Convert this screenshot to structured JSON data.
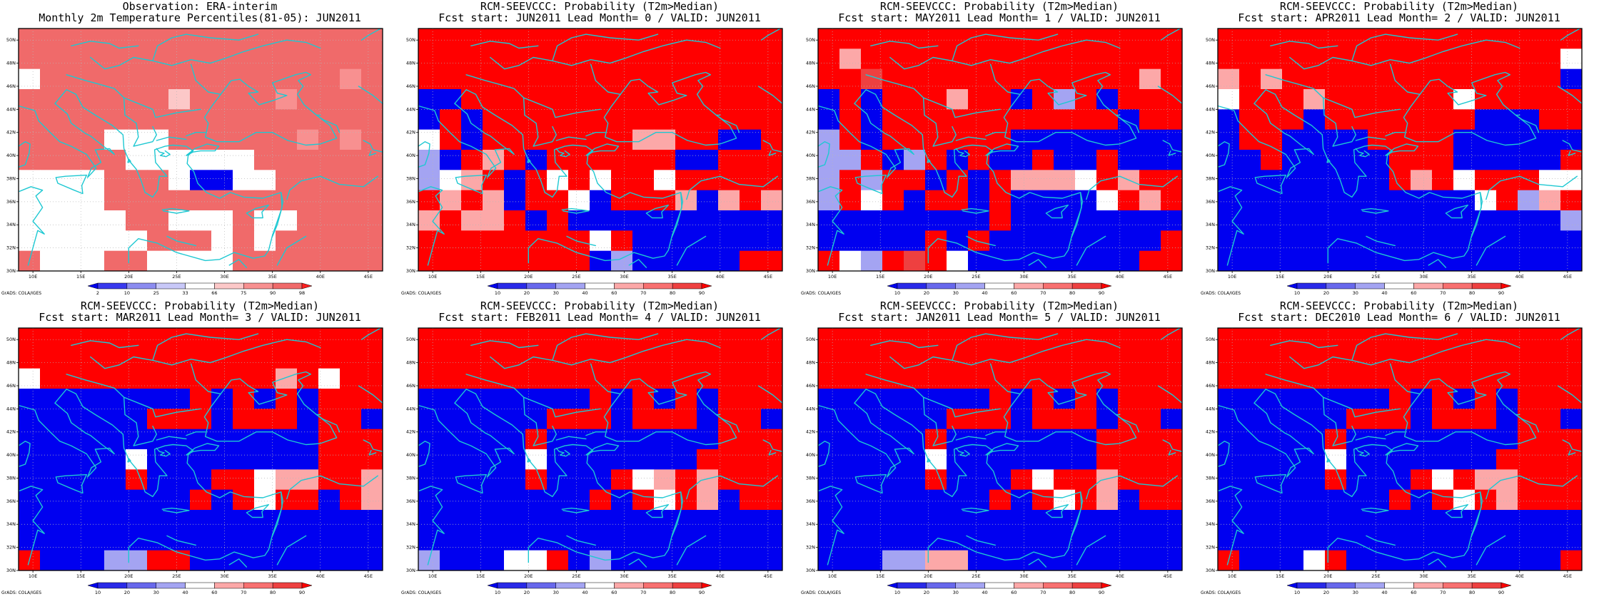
{
  "colors": {
    "coast": "#1ec8d2",
    "grid": "#b8b8b8",
    "prob": {
      "10": "#0000f0",
      "20": "#2a2ae8",
      "30": "#6868ec",
      "40": "#a4a4f2",
      "60": "#ffffff",
      "70": "#fca8a8",
      "80": "#f87070",
      "90": "#ee4040",
      "100": "#ff0000"
    },
    "pct": {
      "2": "#0000f0",
      "10": "#3a3aee",
      "25": "#8c8cf0",
      "33": "#c8c8f8",
      "66": "#ffffff",
      "75": "#fcc8c8",
      "90": "#f89090",
      "98": "#f06a6a",
      "100": "#ff2020"
    }
  },
  "panels": [
    {
      "id": "obs",
      "title_line1": "Observation: ERA-interim",
      "title_line2": "Monthly 2m Temperature Percentiles(81-05): JUN2011",
      "credit": "GrADS: COLA/IGES",
      "legend_labels": [
        "2",
        "10",
        "25",
        "33",
        "66",
        "75",
        "90",
        "98"
      ],
      "scale": "pct",
      "grid": [
        "99999999999999999",
        "99999999999999999",
        "69999999999999989",
        "99999997999989999",
        "99999999999999999",
        "99996669999998989",
        "99999665556999999",
        "66669996006699999",
        "66669999999999999",
        "66666996669669999",
        "66666699969699999",
        "96669966669999999"
      ]
    },
    {
      "id": "lead0",
      "title_line1": "RCM-SEEVCCC: Probability (T2m>Median)",
      "title_line2": "Fcst start: JUN2011  Lead Month= 0 / VALID: JUN2011",
      "credit": "GrADS: COLA/IGES",
      "legend_labels": [
        "10",
        "20",
        "30",
        "40",
        "60",
        "70",
        "80",
        "90"
      ],
      "scale": "prob",
      "grid": [
        "XXXXXXXXXXXXXXXXX",
        "XXXXXXXXXXXXXXXXX",
        "XXXXXXXXXXXXXXXXX",
        "11XXXXXXXXXXXXXXX",
        "1X1XXXXXXXXXXXXXX",
        "6X1XXXXXXX77XX11X",
        "41X7X1XXXXXX11XXX",
        "467X1X6X6XX6XXXXX",
        "X7X71XX61XXX717X7",
        "7X77X1X1111111111",
        "XXXXXXXX6X1111111",
        "XXXXXXXX1411111XX"
      ]
    },
    {
      "id": "lead1",
      "title_line1": "RCM-SEEVCCC: Probability (T2m>Median)",
      "title_line2": "Fcst start: MAY2011  Lead Month= 1 / VALID: JUN2011",
      "credit": "GrADS: COLA/IGES",
      "legend_labels": [
        "10",
        "20",
        "30",
        "40",
        "60",
        "70",
        "80",
        "90"
      ],
      "scale": "prob",
      "grid": [
        "XXXXXXXXXXXXXXXXX",
        "X7XXXXXXXXXXXXXXX",
        "XX9XXXXXXXXXXXX7X",
        "1X1XXX7XX1X4X1XXX",
        "1X1XXXXXXXXXXX1XX",
        "4X1XXXXXX11111111",
        "44X14X1X11X11X111",
        "4X4XX1X1X7776X7XX",
        "4X6X1XX1X11116X7X",
        "11111111X11111111",
        "11111X1X11111111X",
        "X64X9X611111111XX"
      ]
    },
    {
      "id": "lead2",
      "title_line1": "RCM-SEEVCCC: Probability (T2m>Median)",
      "title_line2": "Fcst start: APR2011  Lead Month= 2 / VALID: JUN2011",
      "credit": "GrADS: COLA/IGES",
      "legend_labels": [
        "10",
        "20",
        "30",
        "40",
        "60",
        "70",
        "80",
        "90"
      ],
      "scale": "prob",
      "grid": [
        "XXXXXXXXXXXXXXXXX",
        "XXXXXXXXXXXXXXXX6",
        "7X7XXXXXXXXXXXXX1",
        "6XXX7XXXXXX6XXXXX",
        "1XXX1XXXXXXX111XX",
        "1XX1111XXXX111111",
        "11X11111XXX11111X",
        "11111111X7X6XXX66",
        "1111111111116X47X",
        "11111111111111114",
        "11111111111111111",
        "11111111111111111"
      ]
    },
    {
      "id": "lead3",
      "title_line1": "RCM-SEEVCCC: Probability (T2m>Median)",
      "title_line2": "Fcst start: MAR2011  Lead Month= 3 / VALID: JUN2011",
      "credit": "GrADS: COLA/IGES",
      "legend_labels": [
        "10",
        "20",
        "30",
        "40",
        "60",
        "70",
        "80",
        "90"
      ],
      "scale": "prob",
      "grid": [
        "XXXXXXXXXXXXXXXXX",
        "XXXXXXXXXXXXXXXXX",
        "6XXXXXXXXXXX7X6XX",
        "11111111X1X1X1XXX",
        "111111XXX1XXX1XX1",
        "11111111111111XXX",
        "11111611111111XXX",
        "11111X111XX677XX7",
        "11111111X1X6XX1X7",
        "11111111111111111",
        "11111111111111111",
        "X11144XX111111111"
      ]
    },
    {
      "id": "lead4",
      "title_line1": "RCM-SEEVCCC: Probability (T2m>Median)",
      "title_line2": "Fcst start: FEB2011  Lead Month= 4 / VALID: JUN2011",
      "credit": "GrADS: COLA/IGES",
      "legend_labels": [
        "10",
        "20",
        "30",
        "40",
        "60",
        "70",
        "80",
        "90"
      ],
      "scale": "prob",
      "grid": [
        "XXXXXXXXXXXXXXXXX",
        "XXXXXXXXXXXXXXXXX",
        "XXXXXXXXXXXXXXXXX",
        "11111111X1X1X1XXX",
        "111111XXX1XXX1XX1",
        "11111X11111111XXX",
        "1111161111111XXXX",
        "11111X111X67X7XXX",
        "11111111X1X6X71XX",
        "11111111111111111",
        "11111111111111111",
        "411166X1411111111"
      ]
    },
    {
      "id": "lead5",
      "title_line1": "RCM-SEEVCCC: Probability (T2m>Median)",
      "title_line2": "Fcst start: JAN2011  Lead Month= 5 / VALID: JUN2011",
      "credit": "GrADS: COLA/IGES",
      "legend_labels": [
        "10",
        "20",
        "30",
        "40",
        "60",
        "70",
        "80",
        "90"
      ],
      "scale": "prob",
      "grid": [
        "XXXXXXXXXXXXXXXXX",
        "XXXXXXXXXXXXXXXXX",
        "XXXXXXXXXXXXXXXXX",
        "11111111X1X1X1XXX",
        "111111XXX1XXX1XX1",
        "11111X1111111XXXX",
        "1111161111111XXXX",
        "11111X111X6XX7XXX",
        "11111111X1X6X71XX",
        "11111111111111111",
        "11111111111111111",
        "11144771111111111"
      ]
    },
    {
      "id": "lead6",
      "title_line1": "RCM-SEEVCCC: Probability (T2m>Median)",
      "title_line2": "Fcst start: DEC2010  Lead Month= 6 / VALID: JUN2011",
      "credit": "GrADS: COLA/IGES",
      "legend_labels": [
        "10",
        "20",
        "30",
        "40",
        "60",
        "70",
        "80",
        "90"
      ],
      "scale": "prob",
      "grid": [
        "XXXXXXXXXXXXXXXXX",
        "XXXXXXXXXXXXXXXXX",
        "XXXXXXXXXXXXXXXXX",
        "11111111X1X1X1XXX",
        "111111XXX1XXX1XX1",
        "11111X11111111XXX",
        "1111161111111XXXX",
        "11111X111X6X77XXX",
        "11111111X1X6X7XXX",
        "11111111111111111",
        "11111111111111111",
        "X1116X1111111111X"
      ]
    }
  ],
  "axes": {
    "lat_labels": [
      "30N",
      "32N",
      "34N",
      "36N",
      "38N",
      "40N",
      "42N",
      "44N",
      "46N",
      "48N",
      "50N"
    ],
    "lon_labels": [
      "10E",
      "15E",
      "20E",
      "25E",
      "30E",
      "35E",
      "40E",
      "45E"
    ]
  }
}
